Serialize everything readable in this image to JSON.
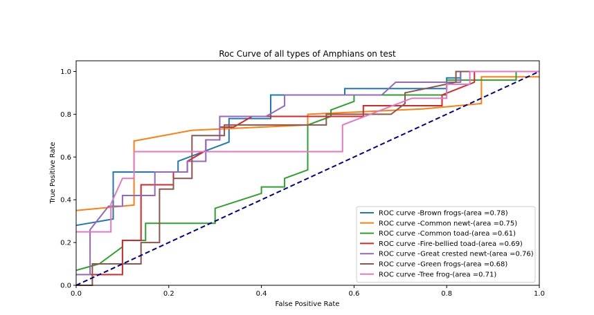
{
  "chart_data": {
    "type": "line",
    "title": "Roc Curve of all types of Amphians on test",
    "xlabel": "False Positive Rate",
    "ylabel": "True Positive Rate",
    "xlim": [
      0.0,
      1.0
    ],
    "ylim": [
      0.0,
      1.05
    ],
    "xticks": [
      0.0,
      0.2,
      0.4,
      0.6,
      0.8,
      1.0
    ],
    "yticks": [
      0.0,
      0.2,
      0.4,
      0.6,
      0.8,
      1.0
    ],
    "xtick_labels": [
      "0.0",
      "0.2",
      "0.4",
      "0.6",
      "0.8",
      "1.0"
    ],
    "ytick_labels": [
      "0.0",
      "0.2",
      "0.4",
      "0.6",
      "0.8",
      "1.0"
    ],
    "grid": false,
    "legend_position": "lower-right",
    "diagonal": {
      "x": [
        0,
        1
      ],
      "y": [
        0,
        1
      ],
      "color": "#000080",
      "style": "dashed"
    },
    "series": [
      {
        "name": "ROC curve -Brown frogs-(area =0.78)",
        "color": "#1f77b4",
        "x": [
          0.0,
          0.08,
          0.08,
          0.22,
          0.22,
          0.33,
          0.33,
          0.42,
          0.42,
          0.58,
          0.58,
          0.8,
          0.8,
          0.83,
          0.83,
          1.0
        ],
        "y": [
          0.28,
          0.31,
          0.53,
          0.53,
          0.58,
          0.67,
          0.78,
          0.78,
          0.89,
          0.89,
          0.92,
          0.92,
          0.97,
          0.97,
          1.0,
          1.0
        ]
      },
      {
        "name": "ROC curve -Common newt-(area =0.75)",
        "color": "#ff7f0e",
        "x": [
          0.0,
          0.125,
          0.125,
          0.25,
          0.5,
          0.5,
          0.75,
          0.875,
          0.875,
          1.0
        ],
        "y": [
          0.35,
          0.375,
          0.675,
          0.725,
          0.75,
          0.8,
          0.825,
          0.85,
          0.975,
          0.975
        ]
      },
      {
        "name": "ROC curve -Common toad-(area =0.61)",
        "color": "#2ca02c",
        "x": [
          0.0,
          0.05,
          0.1,
          0.1,
          0.15,
          0.15,
          0.3,
          0.3,
          0.4,
          0.4,
          0.45,
          0.45,
          0.5,
          0.5,
          0.55,
          0.55,
          0.6,
          0.6,
          0.8,
          0.8,
          0.95,
          0.95,
          1.0
        ],
        "y": [
          0.07,
          0.1,
          0.18,
          0.21,
          0.21,
          0.29,
          0.29,
          0.36,
          0.43,
          0.46,
          0.46,
          0.5,
          0.54,
          0.75,
          0.79,
          0.82,
          0.86,
          0.89,
          0.89,
          0.96,
          0.96,
          1.0,
          1.0
        ]
      },
      {
        "name": "ROC curve -Fire-bellied toad-(area =0.69)",
        "color": "#d62728",
        "x": [
          0.0,
          0.1,
          0.1,
          0.14,
          0.14,
          0.21,
          0.21,
          0.24,
          0.24,
          0.28,
          0.28,
          0.31,
          0.31,
          0.34,
          0.34,
          0.38,
          0.38,
          0.62,
          0.62,
          0.79,
          0.79,
          0.86,
          0.86,
          1.0
        ],
        "y": [
          0.05,
          0.05,
          0.21,
          0.21,
          0.47,
          0.47,
          0.53,
          0.53,
          0.58,
          0.63,
          0.68,
          0.68,
          0.74,
          0.74,
          0.74,
          0.79,
          0.79,
          0.79,
          0.84,
          0.84,
          0.89,
          0.95,
          1.0,
          1.0
        ]
      },
      {
        "name": "ROC curve -Great crested newt-(area =0.76)",
        "color": "#9467bd",
        "x": [
          0.0,
          0.03,
          0.03,
          0.07,
          0.1,
          0.1,
          0.17,
          0.17,
          0.24,
          0.24,
          0.28,
          0.28,
          0.31,
          0.31,
          0.41,
          0.41,
          0.45,
          0.45,
          0.66,
          0.69,
          0.83,
          0.83,
          1.0
        ],
        "y": [
          0.05,
          0.05,
          0.26,
          0.37,
          0.37,
          0.42,
          0.42,
          0.53,
          0.53,
          0.58,
          0.58,
          0.68,
          0.68,
          0.79,
          0.79,
          0.79,
          0.84,
          0.89,
          0.89,
          0.95,
          0.95,
          1.0,
          1.0
        ]
      },
      {
        "name": "ROC curve -Green frogs-(area =0.68)",
        "color": "#8c564b",
        "x": [
          0.0,
          0.035,
          0.035,
          0.14,
          0.14,
          0.18,
          0.18,
          0.21,
          0.21,
          0.25,
          0.25,
          0.32,
          0.32,
          0.54,
          0.54,
          0.68,
          0.71,
          0.71,
          0.82,
          0.82,
          1.0
        ],
        "y": [
          0.0,
          0.0,
          0.1,
          0.1,
          0.2,
          0.2,
          0.45,
          0.45,
          0.5,
          0.5,
          0.7,
          0.7,
          0.75,
          0.75,
          0.8,
          0.8,
          0.85,
          0.9,
          0.95,
          1.0,
          1.0
        ]
      },
      {
        "name": "ROC curve -Tree frog-(area =0.71)",
        "color": "#e377c2",
        "x": [
          0.0,
          0.075,
          0.075,
          0.1,
          0.125,
          0.125,
          0.575,
          0.575,
          0.725,
          0.8,
          0.8,
          0.85,
          0.85,
          1.0
        ],
        "y": [
          0.25,
          0.25,
          0.38,
          0.5,
          0.5,
          0.625,
          0.625,
          0.75,
          0.875,
          0.875,
          0.94,
          0.94,
          1.0,
          1.0
        ]
      }
    ]
  }
}
